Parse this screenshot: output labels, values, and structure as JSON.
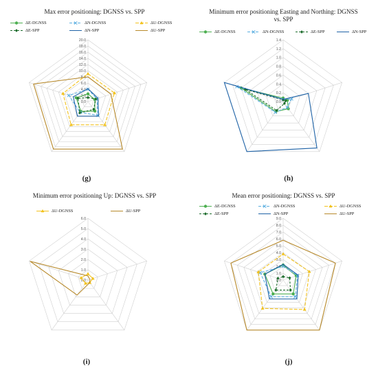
{
  "colors": {
    "E_DGNSS": "#4caf50",
    "N_DGNSS": "#5aaee0",
    "U_DGNSS": "#f2c21e",
    "E_SPP": "#1b6b2a",
    "N_SPP": "#1e62a6",
    "U_SPP": "#b7892a",
    "grid": "#cfcfcf"
  },
  "chart_data": [
    {
      "type": "radar",
      "title": "Max error positioning: DGNSS vs. SPP",
      "sublabel": "(g)",
      "axes": 5,
      "rmax": 20,
      "ticks": [
        "20.0",
        "18.0",
        "16.0",
        "14.0",
        "12.0",
        "10.0",
        "8.0",
        "6.0",
        "4.0",
        "2.0",
        "0.0"
      ],
      "series": [
        {
          "name": "ΔE-DGNSS",
          "key": "E_DGNSS",
          "dash": "none",
          "marker": "circle",
          "values": [
            2.5,
            2.3,
            3.8,
            3.9,
            4.0
          ]
        },
        {
          "name": "ΔN-DGNSS",
          "key": "N_DGNSS",
          "dash": "4,2",
          "marker": "x",
          "values": [
            4.0,
            3.0,
            5.5,
            4.3,
            6.5
          ]
        },
        {
          "name": "ΔU-DGNSS",
          "key": "U_DGNSS",
          "dash": "5,2",
          "marker": "tri",
          "values": [
            9.0,
            9.0,
            9.3,
            9.3,
            8.5
          ]
        },
        {
          "name": "ΔE-SPP",
          "key": "E_SPP",
          "dash": "3,2",
          "marker": "diamond",
          "values": [
            1.3,
            2.7,
            3.1,
            4.5,
            3.4
          ]
        },
        {
          "name": "ΔN-SPP",
          "key": "N_SPP",
          "dash": "none",
          "marker": "none",
          "values": [
            4.2,
            3.4,
            5.8,
            5.8,
            5.0
          ]
        },
        {
          "name": "ΔU-SPP",
          "key": "U_SPP",
          "dash": "none",
          "marker": "none",
          "values": [
            8.0,
            7.8,
            19.0,
            19.0,
            18.5
          ]
        }
      ]
    },
    {
      "type": "radar",
      "title": "Minimum error positioning Easting and Northing: DGNSS vs. SPP",
      "sublabel": "(h)",
      "axes": 5,
      "rmax": 1.4,
      "ticks": [
        "1.4",
        "1.2",
        "1.0",
        "0.8",
        "0.6",
        "0.4",
        "0.2",
        "0.0"
      ],
      "series": [
        {
          "name": "ΔE-DGNSS",
          "key": "E_DGNSS",
          "dash": "none",
          "marker": "circle",
          "values": [
            0.08,
            0.1,
            0.2,
            0.28,
            1.0
          ]
        },
        {
          "name": "ΔN-DGNSS",
          "key": "N_DGNSS",
          "dash": "4,2",
          "marker": "x",
          "values": [
            0.05,
            0.2,
            0.16,
            0.3,
            1.1
          ]
        },
        {
          "name": "ΔE-SPP",
          "key": "E_SPP",
          "dash": "3,2",
          "marker": "diamond",
          "values": [
            0.04,
            0.06,
            0.05,
            0.25,
            0.9
          ]
        },
        {
          "name": "ΔN-SPP",
          "key": "N_SPP",
          "dash": "none",
          "marker": "none",
          "values": [
            0.05,
            0.6,
            1.3,
            1.4,
            1.4
          ]
        }
      ]
    },
    {
      "type": "radar",
      "title": "Minimum error positioning Up: DGNSS vs. SPP",
      "sublabel": "(i)",
      "axes": 5,
      "rmax": 6.0,
      "ticks": [
        "6.0",
        "5.0",
        "4.0",
        "3.0",
        "2.0",
        "1.0",
        "0.0"
      ],
      "series": [
        {
          "name": "ΔU-DGNSS",
          "key": "U_DGNSS",
          "dash": "none",
          "marker": "tri",
          "values": [
            0.6,
            0.5,
            0.3,
            0.4,
            0.7
          ]
        },
        {
          "name": "ΔU-SPP",
          "key": "U_SPP",
          "dash": "none",
          "marker": "none",
          "values": [
            0.4,
            0.2,
            0.3,
            1.8,
            5.9
          ]
        }
      ]
    },
    {
      "type": "radar",
      "title": "Mean error positioning: DGNSS vs. SPP",
      "sublabel": "(j)",
      "axes": 5,
      "rmax": 9.0,
      "ticks": [
        "9.0",
        "8.0",
        "7.0",
        "6.0",
        "5.0",
        "4.0",
        "3.0",
        "2.0",
        "1.0",
        "0.0"
      ],
      "series": [
        {
          "name": "ΔE-DGNSS",
          "key": "E_DGNSS",
          "dash": "none",
          "marker": "circle",
          "values": [
            2.2,
            2.0,
            2.5,
            2.5,
            2.8
          ]
        },
        {
          "name": "ΔN-DGNSS",
          "key": "N_DGNSS",
          "dash": "4,2",
          "marker": "x",
          "values": [
            2.0,
            2.2,
            3.0,
            3.0,
            3.5
          ]
        },
        {
          "name": "ΔU-DGNSS",
          "key": "U_DGNSS",
          "dash": "5,2",
          "marker": "tri",
          "values": [
            3.8,
            4.0,
            5.3,
            5.1,
            3.8
          ]
        },
        {
          "name": "ΔE-SPP",
          "key": "E_SPP",
          "dash": "3,2",
          "marker": "diamond",
          "values": [
            0.5,
            1.0,
            1.8,
            1.8,
            0.8
          ]
        },
        {
          "name": "ΔN-SPP",
          "key": "N_SPP",
          "dash": "none",
          "marker": "none",
          "values": [
            2.3,
            2.3,
            3.4,
            3.4,
            2.8
          ]
        },
        {
          "name": "ΔU-SPP",
          "key": "U_SPP",
          "dash": "none",
          "marker": "none",
          "values": [
            5.8,
            8.0,
            9.0,
            9.0,
            8.0
          ]
        }
      ]
    }
  ]
}
